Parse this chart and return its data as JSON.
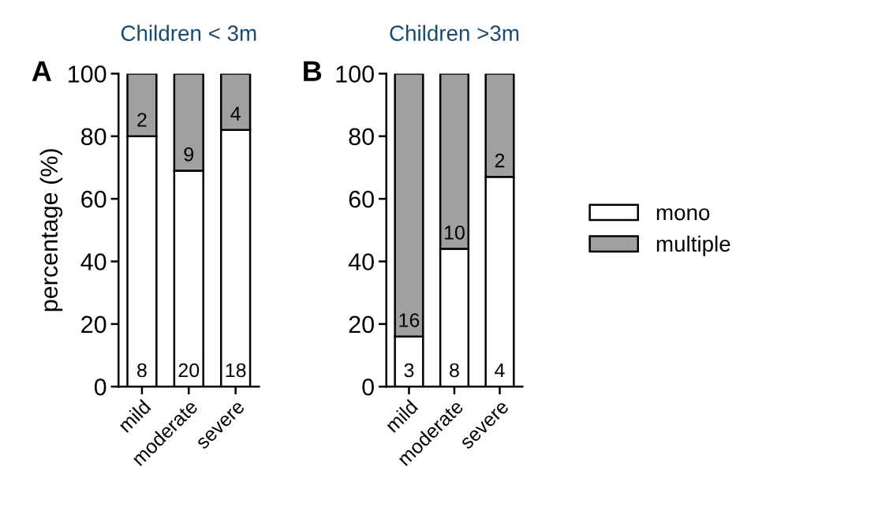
{
  "chart_data": [
    {
      "type": "bar",
      "title": "Children < 3m",
      "ylabel": "percentage (%)",
      "categories": [
        "mild",
        "moderate",
        "severe"
      ],
      "stacked": true,
      "ylim": [
        0,
        100
      ],
      "yticks": [
        0,
        20,
        40,
        60,
        80,
        100
      ],
      "annotations": [
        "A",
        {
          "text": "8",
          "x": "mild",
          "y": 0
        },
        {
          "text": "20",
          "x": "moderate",
          "y": 0
        },
        {
          "text": "18",
          "x": "severe",
          "y": 0
        },
        {
          "text": "2",
          "x": "mild",
          "y": 80
        },
        {
          "text": "9",
          "x": "moderate",
          "y": 69
        },
        {
          "text": "4",
          "x": "severe",
          "y": 82
        }
      ],
      "series": [
        {
          "color": "#ffffff",
          "values": [
            80,
            69,
            82
          ]
        },
        {
          "color": "#a0a0a0",
          "values": [
            20,
            31,
            18
          ]
        }
      ]
    },
    {
      "type": "bar",
      "title": "Children >3m",
      "categories": [
        "mild",
        "moderate",
        "severe"
      ],
      "stacked": true,
      "ylim": [
        0,
        100
      ],
      "yticks": [
        0,
        20,
        40,
        60,
        80,
        100
      ],
      "legend": "right",
      "annotations": [
        "B",
        {
          "text": "3",
          "x": "mild",
          "y": 0
        },
        {
          "text": "8",
          "x": "moderate",
          "y": 0
        },
        {
          "text": "4",
          "x": "severe",
          "y": 0
        },
        {
          "text": "16",
          "x": "mild",
          "y": 16
        },
        {
          "text": "10",
          "x": "moderate",
          "y": 44
        },
        {
          "text": "2",
          "x": "severe",
          "y": 67
        }
      ],
      "series": [
        {
          "name": "mono",
          "color": "#ffffff",
          "values": [
            16,
            44,
            67
          ]
        },
        {
          "name": "multiple",
          "color": "#a0a0a0",
          "values": [
            84,
            56,
            33
          ]
        }
      ]
    }
  ]
}
